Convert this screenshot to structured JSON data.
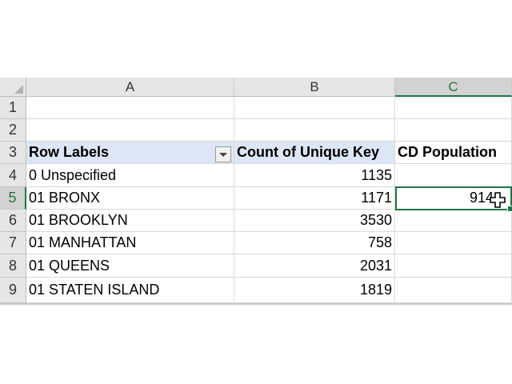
{
  "columns": [
    "A",
    "B",
    "C"
  ],
  "rows": [
    "1",
    "2",
    "3",
    "4",
    "5",
    "6",
    "7",
    "8",
    "9"
  ],
  "pivot": {
    "header_row_labels": "Row Labels",
    "header_count": "Count of Unique Key",
    "header_population": "CD Population",
    "rows": [
      {
        "label": "0 Unspecified",
        "count": "1135",
        "population": ""
      },
      {
        "label": "01 BRONX",
        "count": "1171",
        "population": "914"
      },
      {
        "label": "01 BROOKLYN",
        "count": "3530",
        "population": ""
      },
      {
        "label": "01 MANHATTAN",
        "count": "758",
        "population": ""
      },
      {
        "label": "01 QUEENS",
        "count": "2031",
        "population": ""
      },
      {
        "label": "01 STATEN ISLAND",
        "count": "1819",
        "population": ""
      }
    ]
  },
  "active_cell": "C5",
  "colors": {
    "accent": "#217346",
    "header_band": "#dde6f5"
  }
}
